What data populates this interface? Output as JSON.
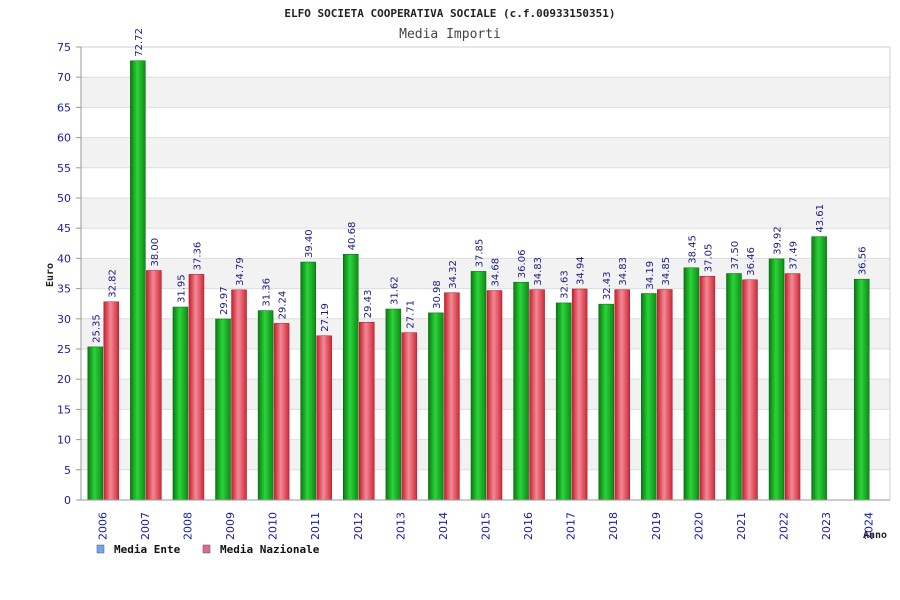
{
  "chart_data": {
    "type": "bar",
    "title": "ELFO SOCIETA COOPERATIVA SOCIALE (c.f.00933150351)",
    "subtitle": "Media Importi",
    "xlabel": "Anno",
    "ylabel": "Euro",
    "ylim": [
      0,
      75
    ],
    "yticks": [
      0,
      5,
      10,
      15,
      20,
      25,
      30,
      35,
      40,
      45,
      50,
      55,
      60,
      65,
      70,
      75
    ],
    "categories": [
      "2006",
      "2007",
      "2008",
      "2009",
      "2010",
      "2011",
      "2012",
      "2013",
      "2014",
      "2015",
      "2016",
      "2017",
      "2018",
      "2019",
      "2020",
      "2021",
      "2022",
      "2023",
      "2024"
    ],
    "series": [
      {
        "name": "Media Ente",
        "color": "#22b22a",
        "legend_color": "#6fa8e6",
        "values": [
          25.35,
          72.72,
          31.95,
          29.97,
          31.36,
          39.4,
          40.68,
          31.62,
          30.98,
          37.85,
          36.06,
          32.63,
          32.43,
          34.19,
          38.45,
          37.5,
          39.92,
          43.61,
          36.56
        ],
        "labels": [
          "25.35",
          "72.72",
          "31.95",
          "29.97",
          "31.36",
          "39.40",
          "40.68",
          "31.62",
          "30.98",
          "37.85",
          "36.06",
          "32.63",
          "32.43",
          "34.19",
          "38.45",
          "37.50",
          "39.92",
          "43.61",
          "36.56"
        ]
      },
      {
        "name": "Media Nazionale",
        "color": "#e0404a",
        "legend_color": "#e06a8a",
        "values": [
          32.82,
          38.0,
          37.36,
          34.79,
          29.24,
          27.19,
          29.43,
          27.71,
          34.32,
          34.68,
          34.83,
          34.94,
          34.83,
          34.85,
          37.05,
          36.46,
          37.49,
          null,
          null
        ],
        "labels": [
          "32.82",
          "38.00",
          "37.36",
          "34.79",
          "29.24",
          "27.19",
          "29.43",
          "27.71",
          "34.32",
          "34.68",
          "34.83",
          "34.94",
          "34.83",
          "34.85",
          "37.05",
          "36.46",
          "37.49",
          null,
          null
        ]
      }
    ],
    "grid": true,
    "legend": "bottom-left"
  }
}
